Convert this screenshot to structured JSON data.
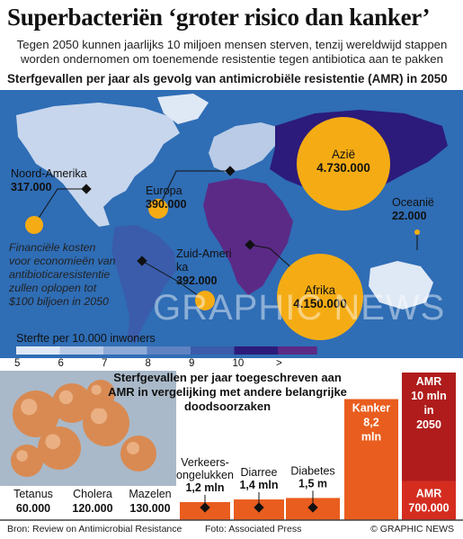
{
  "header": {
    "title": "Superbacteriën ‘groter risico dan kanker’",
    "subtitle": "Tegen 2050 kunnen jaarlijks 10 miljoen mensen sterven, tenzij wereldwijd stappen worden ondernomen om toenemende resistentie tegen antibiotica aan te pakken",
    "map_heading": "Sterfgevallen per jaar als gevolg van antimicrobiële resistentie (AMR) in 2050"
  },
  "map": {
    "regions": [
      {
        "name": "Noord-Amerika",
        "value": "317.000"
      },
      {
        "name": "Europa",
        "value": "390.000"
      },
      {
        "name": "Azië",
        "value": "4.730.000"
      },
      {
        "name": "Oceanië",
        "value": "22.000"
      },
      {
        "name": "Zuid-Amerika",
        "value": "392.000"
      },
      {
        "name": "Afrika",
        "value": "4.150.000"
      }
    ],
    "note": "Financiële kosten voor economieën van antibioticaresistentie zullen oplopen tot $100 biljoen in 2050",
    "colors": {
      "ocean": "#2f6db5",
      "circle": "#f5ac14",
      "asia": "#2c1b7a",
      "africa": "#5b2a86"
    }
  },
  "legend": {
    "title": "Sterfte per 10.000 inwoners",
    "ticks": [
      "5",
      "6",
      "7",
      "8",
      "9",
      "10",
      ">"
    ],
    "colors": [
      "#dfe8f5",
      "#b9cbe6",
      "#8eaad6",
      "#5f82c2",
      "#3a5cab",
      "#2c1b7a",
      "#5b2a86"
    ]
  },
  "chart_data": {
    "type": "bar",
    "title": "Sterfgevallen per jaar toegeschreven aan AMR in vergelijking met andere belangrijke doodsoorzaken",
    "unit": "aantal per jaar",
    "bars": [
      {
        "label": "Tetanus",
        "value_label": "60.000",
        "value": 60000
      },
      {
        "label": "Cholera",
        "value_label": "120.000",
        "value": 120000
      },
      {
        "label": "Mazelen",
        "value_label": "130.000",
        "value": 130000
      },
      {
        "label": "Verkeers-ongelukken",
        "value_label": "1,2 mln",
        "value": 1200000
      },
      {
        "label": "Diarree",
        "value_label": "1,4 mln",
        "value": 1400000
      },
      {
        "label": "Diabetes",
        "value_label": "1,5 m",
        "value": 1500000
      },
      {
        "label": "Kanker",
        "value_label": "8,2 mln",
        "value": 8200000
      },
      {
        "label": "AMR 10 mln in 2050",
        "value_label": "",
        "value": 10000000,
        "secondary_label": "AMR 700.000",
        "secondary_value": 700000
      }
    ],
    "colors": {
      "bar": "#e95d1e",
      "amr": "#b01c1c",
      "amr_now": "#d42d20",
      "base": "#444444"
    }
  },
  "footer": {
    "source": "Bron: Review on Antimicrobial Resistance",
    "credit": "Foto: Associated Press",
    "copyright": "© GRAPHIC NEWS",
    "watermark": "GRAPHIC NEWS"
  }
}
